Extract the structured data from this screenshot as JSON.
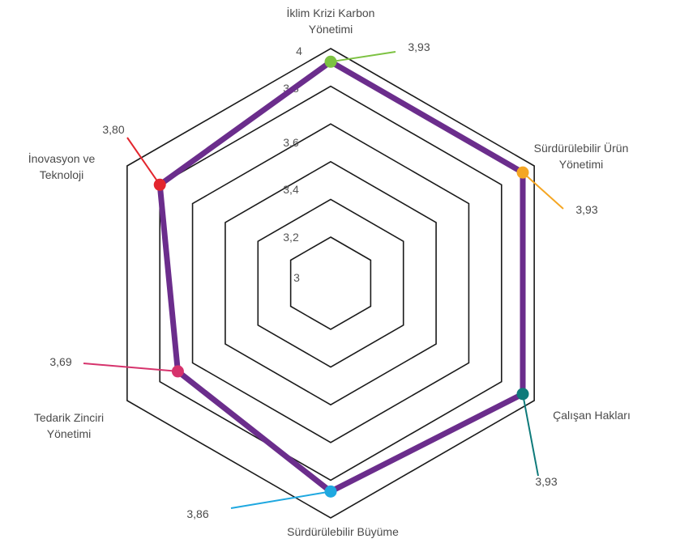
{
  "chart_data": {
    "type": "radar",
    "categories": [
      [
        "İklim Krizi Karbon",
        "Yönetimi"
      ],
      [
        "Sürdürülebilir Ürün",
        "Yönetimi"
      ],
      [
        "Çalışan Hakları"
      ],
      [
        "Sürdürülebilir Büyüme"
      ],
      [
        "Tedarik Zinciri",
        "Yönetimi"
      ],
      [
        "İnovasyon ve",
        "Teknoloji"
      ]
    ],
    "values": [
      3.93,
      3.93,
      3.93,
      3.86,
      3.69,
      3.8
    ],
    "value_labels": [
      "3,93",
      "3,93",
      "3,93",
      "3,86",
      "3,69",
      "3,80"
    ],
    "ticks": [
      3,
      3.2,
      3.4,
      3.6,
      3.8,
      4
    ],
    "tick_labels": [
      "3",
      "3,2",
      "3,4",
      "3,6",
      "3,8",
      "4"
    ],
    "range": [
      3,
      4
    ],
    "grid": true,
    "legend": false,
    "series_color": "#6b2d8c",
    "grid_color": "#1a1a1a",
    "point_colors": [
      "#7dc242",
      "#f5a623",
      "#0e7a7a",
      "#1fa8e0",
      "#d6336c",
      "#e3262e"
    ]
  }
}
